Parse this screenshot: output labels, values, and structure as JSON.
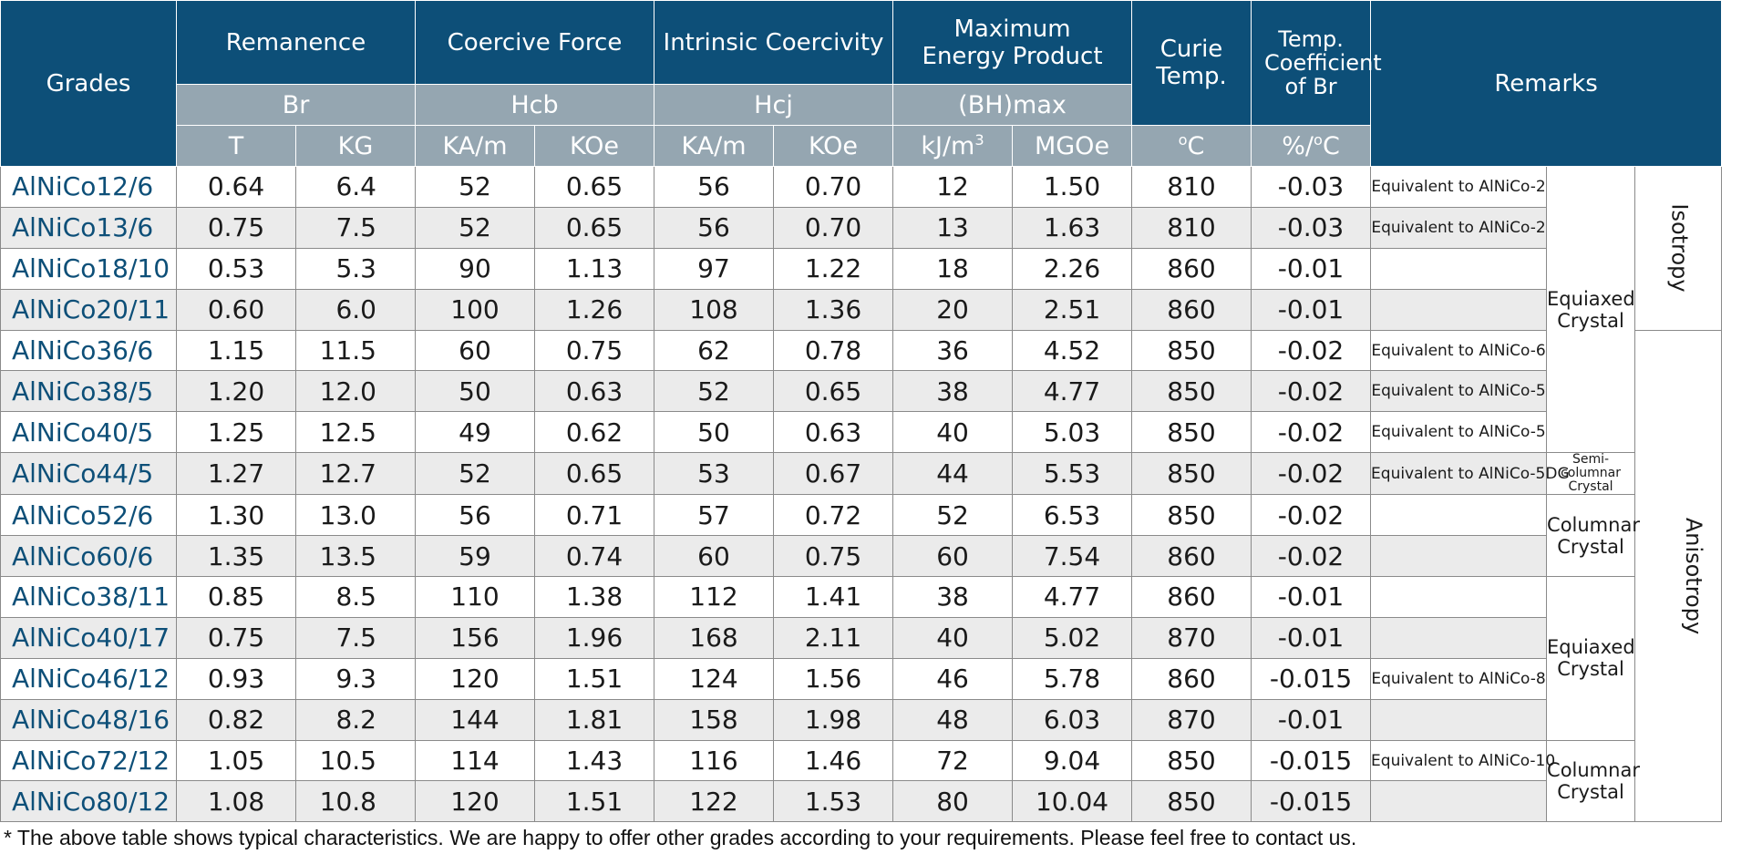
{
  "header": {
    "grades": "Grades",
    "remanence": "Remanence",
    "coercive_force": "Coercive Force",
    "intrinsic_coercivity": "Intrinsic Coercivity",
    "max_energy_product": "Maximum Energy Product",
    "curie_temp": "Curie Temp.",
    "temp_coefficient": "Temp. Coefficient of Br",
    "remarks": "Remarks",
    "br": "Br",
    "hcb": "Hcb",
    "hcj": "Hcj",
    "bhmax": "(BH)max",
    "unit_t": "T",
    "unit_kg": "KG",
    "unit_kam_1": "KA/m",
    "unit_koe_1": "KOe",
    "unit_kam_2": "KA/m",
    "unit_koe_2": "KOe",
    "unit_kjm3_base": "kJ/m",
    "unit_kjm3_sup": "3",
    "unit_mgoe": "MGOe",
    "unit_c_sup": "o",
    "unit_c": "C",
    "unit_pct_base": "%/",
    "unit_pct_sup": "o",
    "unit_pct_c": "C"
  },
  "rows": [
    {
      "grade": "AlNiCo12/6",
      "t": "0.64",
      "kg": "6.4",
      "hcb_kam": "52",
      "hcb_koe": "0.65",
      "hcj_kam": "56",
      "hcj_koe": "0.70",
      "bh_kj": "12",
      "bh_mgoe": "1.50",
      "curie": "810",
      "coef": "-0.03",
      "remark": "Equivalent to AlNiCo-2"
    },
    {
      "grade": "AlNiCo13/6",
      "t": "0.75",
      "kg": "7.5",
      "hcb_kam": "52",
      "hcb_koe": "0.65",
      "hcj_kam": "56",
      "hcj_koe": "0.70",
      "bh_kj": "13",
      "bh_mgoe": "1.63",
      "curie": "810",
      "coef": "-0.03",
      "remark": "Equivalent to AlNiCo-2"
    },
    {
      "grade": "AlNiCo18/10",
      "t": "0.53",
      "kg": "5.3",
      "hcb_kam": "90",
      "hcb_koe": "1.13",
      "hcj_kam": "97",
      "hcj_koe": "1.22",
      "bh_kj": "18",
      "bh_mgoe": "2.26",
      "curie": "860",
      "coef": "-0.01",
      "remark": ""
    },
    {
      "grade": "AlNiCo20/11",
      "t": "0.60",
      "kg": "6.0",
      "hcb_kam": "100",
      "hcb_koe": "1.26",
      "hcj_kam": "108",
      "hcj_koe": "1.36",
      "bh_kj": "20",
      "bh_mgoe": "2.51",
      "curie": "860",
      "coef": "-0.01",
      "remark": ""
    },
    {
      "grade": "AlNiCo36/6",
      "t": "1.15",
      "kg": "11.5",
      "hcb_kam": "60",
      "hcb_koe": "0.75",
      "hcj_kam": "62",
      "hcj_koe": "0.78",
      "bh_kj": "36",
      "bh_mgoe": "4.52",
      "curie": "850",
      "coef": "-0.02",
      "remark": "Equivalent to AlNiCo-6"
    },
    {
      "grade": "AlNiCo38/5",
      "t": "1.20",
      "kg": "12.0",
      "hcb_kam": "50",
      "hcb_koe": "0.63",
      "hcj_kam": "52",
      "hcj_koe": "0.65",
      "bh_kj": "38",
      "bh_mgoe": "4.77",
      "curie": "850",
      "coef": "-0.02",
      "remark": "Equivalent to AlNiCo-5"
    },
    {
      "grade": "AlNiCo40/5",
      "t": "1.25",
      "kg": "12.5",
      "hcb_kam": "49",
      "hcb_koe": "0.62",
      "hcj_kam": "50",
      "hcj_koe": "0.63",
      "bh_kj": "40",
      "bh_mgoe": "5.03",
      "curie": "850",
      "coef": "-0.02",
      "remark": "Equivalent to AlNiCo-5"
    },
    {
      "grade": "AlNiCo44/5",
      "t": "1.27",
      "kg": "12.7",
      "hcb_kam": "52",
      "hcb_koe": "0.65",
      "hcj_kam": "53",
      "hcj_koe": "0.67",
      "bh_kj": "44",
      "bh_mgoe": "5.53",
      "curie": "850",
      "coef": "-0.02",
      "remark": "Equivalent to AlNiCo-5DG"
    },
    {
      "grade": "AlNiCo52/6",
      "t": "1.30",
      "kg": "13.0",
      "hcb_kam": "56",
      "hcb_koe": "0.71",
      "hcj_kam": "57",
      "hcj_koe": "0.72",
      "bh_kj": "52",
      "bh_mgoe": "6.53",
      "curie": "850",
      "coef": "-0.02",
      "remark": ""
    },
    {
      "grade": "AlNiCo60/6",
      "t": "1.35",
      "kg": "13.5",
      "hcb_kam": "59",
      "hcb_koe": "0.74",
      "hcj_kam": "60",
      "hcj_koe": "0.75",
      "bh_kj": "60",
      "bh_mgoe": "7.54",
      "curie": "860",
      "coef": "-0.02",
      "remark": ""
    },
    {
      "grade": "AlNiCo38/11",
      "t": "0.85",
      "kg": "8.5",
      "hcb_kam": "110",
      "hcb_koe": "1.38",
      "hcj_kam": "112",
      "hcj_koe": "1.41",
      "bh_kj": "38",
      "bh_mgoe": "4.77",
      "curie": "860",
      "coef": "-0.01",
      "remark": ""
    },
    {
      "grade": "AlNiCo40/17",
      "t": "0.75",
      "kg": "7.5",
      "hcb_kam": "156",
      "hcb_koe": "1.96",
      "hcj_kam": "168",
      "hcj_koe": "2.11",
      "bh_kj": "40",
      "bh_mgoe": "5.02",
      "curie": "870",
      "coef": "-0.01",
      "remark": ""
    },
    {
      "grade": "AlNiCo46/12",
      "t": "0.93",
      "kg": "9.3",
      "hcb_kam": "120",
      "hcb_koe": "1.51",
      "hcj_kam": "124",
      "hcj_koe": "1.56",
      "bh_kj": "46",
      "bh_mgoe": "5.78",
      "curie": "860",
      "coef": "-0.015",
      "remark": "Equivalent to AlNiCo-8"
    },
    {
      "grade": "AlNiCo48/16",
      "t": "0.82",
      "kg": "8.2",
      "hcb_kam": "144",
      "hcb_koe": "1.81",
      "hcj_kam": "158",
      "hcj_koe": "1.98",
      "bh_kj": "48",
      "bh_mgoe": "6.03",
      "curie": "870",
      "coef": "-0.01",
      "remark": ""
    },
    {
      "grade": "AlNiCo72/12",
      "t": "1.05",
      "kg": "10.5",
      "hcb_kam": "114",
      "hcb_koe": "1.43",
      "hcj_kam": "116",
      "hcj_koe": "1.46",
      "bh_kj": "72",
      "bh_mgoe": "9.04",
      "curie": "850",
      "coef": "-0.015",
      "remark": "Equivalent to AlNiCo-10"
    },
    {
      "grade": "AlNiCo80/12",
      "t": "1.08",
      "kg": "10.8",
      "hcb_kam": "120",
      "hcb_koe": "1.51",
      "hcj_kam": "122",
      "hcj_koe": "1.53",
      "bh_kj": "80",
      "bh_mgoe": "10.04",
      "curie": "850",
      "coef": "-0.015",
      "remark": ""
    }
  ],
  "crystal_groups": [
    {
      "label": "Equiaxed Crystal",
      "rows": 7
    },
    {
      "label": "Semi-columnar Crystal",
      "rows": 1
    },
    {
      "label": "Columnar Crystal",
      "rows": 2
    },
    {
      "label": "Equiaxed Crystal",
      "rows": 4
    },
    {
      "label": "Columnar Crystal",
      "rows": 2
    }
  ],
  "tropy_groups": [
    {
      "label": "Isotropy",
      "rows": 4
    },
    {
      "label": "Anisotropy",
      "rows": 12
    }
  ],
  "footnote": "* The above table shows typical characteristics. We are happy to offer other grades according to your requirements. Please feel free to contact us.",
  "colors": {
    "header_blue": "#0d4f78",
    "subheader_gray": "#95a6b1",
    "stripe_gray": "#ebebeb",
    "grade_text": "#0d4f78"
  }
}
